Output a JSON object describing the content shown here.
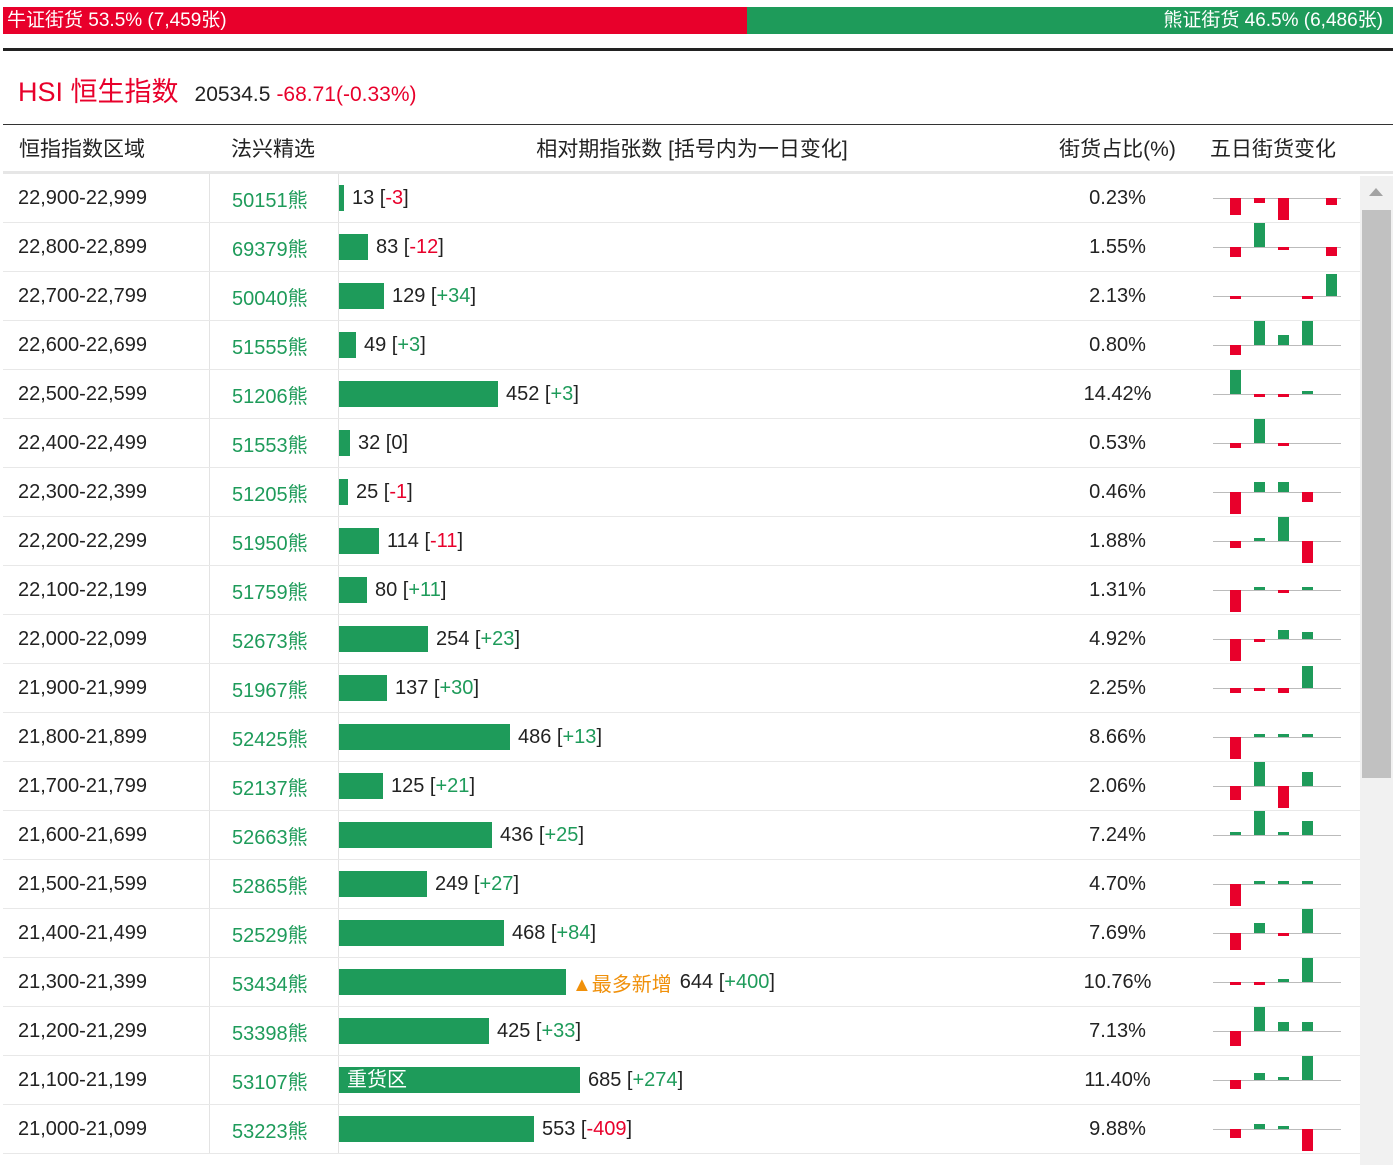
{
  "ratio": {
    "bull_label": "牛证街货 53.5% (7,459张)",
    "bear_label": "熊证街货 46.5% (6,486张)",
    "bull_fraction": 0.535,
    "colors": {
      "bull": "#e8002b",
      "bear": "#1e9b5a"
    }
  },
  "index": {
    "name": "HSI 恒生指数",
    "price": "20534.5",
    "change": "-68.71(-0.33%)"
  },
  "columns": {
    "range": "恒指指数区域",
    "pick": "法兴精选",
    "count": "相对期指张数 [括号内为一日变化]",
    "share": "街货占比(%)",
    "five_day": "五日街货变化"
  },
  "max_count": 685,
  "rows": [
    {
      "range": "22,900-22,999",
      "code": "50151熊",
      "count": 13,
      "count_text": "13",
      "change": "-3",
      "share": "0.23%",
      "spark": [
        -1.0,
        -0.3,
        -1.3,
        0,
        -0.4
      ]
    },
    {
      "range": "22,800-22,899",
      "code": "69379熊",
      "count": 83,
      "count_text": "83",
      "change": "-12",
      "share": "1.55%",
      "spark": [
        -0.6,
        1.4,
        -0.2,
        0,
        -0.5
      ]
    },
    {
      "range": "22,700-22,799",
      "code": "50040熊",
      "count": 129,
      "count_text": "129",
      "change": "+34",
      "share": "2.13%",
      "spark": [
        -0.1,
        0,
        0,
        -0.1,
        1.3
      ]
    },
    {
      "range": "22,600-22,699",
      "code": "51555熊",
      "count": 49,
      "count_text": "49",
      "change": "+3",
      "share": "0.80%",
      "spark": [
        -0.6,
        1.4,
        0.6,
        1.4,
        0
      ]
    },
    {
      "range": "22,500-22,599",
      "code": "51206熊",
      "count": 452,
      "count_text": "452",
      "change": "+3",
      "share": "14.42%",
      "spark": [
        1.4,
        -0.1,
        -0.1,
        0.1,
        0
      ]
    },
    {
      "range": "22,400-22,499",
      "code": "51553熊",
      "count": 32,
      "count_text": "32",
      "change": "0",
      "share": "0.53%",
      "spark": [
        -0.3,
        1.4,
        -0.1,
        0,
        0
      ]
    },
    {
      "range": "22,300-22,399",
      "code": "51205熊",
      "count": 25,
      "count_text": "25",
      "change": "-1",
      "share": "0.46%",
      "spark": [
        -1.3,
        0.6,
        0.6,
        -0.6,
        0
      ]
    },
    {
      "range": "22,200-22,299",
      "code": "51950熊",
      "count": 114,
      "count_text": "114",
      "change": "-11",
      "share": "1.88%",
      "spark": [
        -0.4,
        0.2,
        1.4,
        -1.3,
        0
      ]
    },
    {
      "range": "22,100-22,199",
      "code": "51759熊",
      "count": 80,
      "count_text": "80",
      "change": "+11",
      "share": "1.31%",
      "spark": [
        -1.3,
        0.1,
        -0.1,
        0.2,
        0
      ]
    },
    {
      "range": "22,000-22,099",
      "code": "52673熊",
      "count": 254,
      "count_text": "254",
      "change": "+23",
      "share": "4.92%",
      "spark": [
        -1.3,
        -0.1,
        0.5,
        0.4,
        0
      ]
    },
    {
      "range": "21,900-21,999",
      "code": "51967熊",
      "count": 137,
      "count_text": "137",
      "change": "+30",
      "share": "2.25%",
      "spark": [
        -0.3,
        -0.1,
        -0.3,
        1.3,
        0
      ]
    },
    {
      "range": "21,800-21,899",
      "code": "52425熊",
      "count": 486,
      "count_text": "486",
      "change": "+13",
      "share": "8.66%",
      "spark": [
        -1.3,
        0.1,
        0.1,
        0.1,
        0
      ]
    },
    {
      "range": "21,700-21,799",
      "code": "52137熊",
      "count": 125,
      "count_text": "125",
      "change": "+21",
      "share": "2.06%",
      "spark": [
        -0.8,
        1.4,
        -1.3,
        0.8,
        0
      ]
    },
    {
      "range": "21,600-21,699",
      "code": "52663熊",
      "count": 436,
      "count_text": "436",
      "change": "+25",
      "share": "7.24%",
      "spark": [
        0.2,
        1.4,
        0.1,
        0.8,
        0
      ]
    },
    {
      "range": "21,500-21,599",
      "code": "52865熊",
      "count": 249,
      "count_text": "249",
      "change": "+27",
      "share": "4.70%",
      "spark": [
        -1.3,
        0.1,
        0.1,
        0.2,
        0
      ]
    },
    {
      "range": "21,400-21,499",
      "code": "52529熊",
      "count": 468,
      "count_text": "468",
      "change": "+84",
      "share": "7.69%",
      "spark": [
        -1.0,
        0.6,
        -0.2,
        1.4,
        0
      ]
    },
    {
      "range": "21,300-21,399",
      "code": "53434熊",
      "count": 644,
      "count_text": "644",
      "change": "+400",
      "share": "10.76%",
      "tag": "▲最多新增",
      "spark": [
        -0.2,
        -0.1,
        0.1,
        1.4,
        0
      ]
    },
    {
      "range": "21,200-21,299",
      "code": "53398熊",
      "count": 425,
      "count_text": "425",
      "change": "+33",
      "share": "7.13%",
      "spark": [
        -0.9,
        1.4,
        0.5,
        0.5,
        0
      ]
    },
    {
      "range": "21,100-21,199",
      "code": "53107熊",
      "count": 685,
      "count_text": "685",
      "change": "+274",
      "share": "11.40%",
      "bar_label": "重货区",
      "spark": [
        -0.5,
        0.4,
        0.1,
        1.4,
        0
      ]
    },
    {
      "range": "21,000-21,099",
      "code": "53223熊",
      "count": 553,
      "count_text": "553",
      "change": "-409",
      "share": "9.88%",
      "spark": [
        -0.5,
        0.3,
        0.2,
        -1.3,
        0
      ]
    }
  ],
  "icons": {
    "scroll_up": "scroll-up-arrow-icon"
  }
}
